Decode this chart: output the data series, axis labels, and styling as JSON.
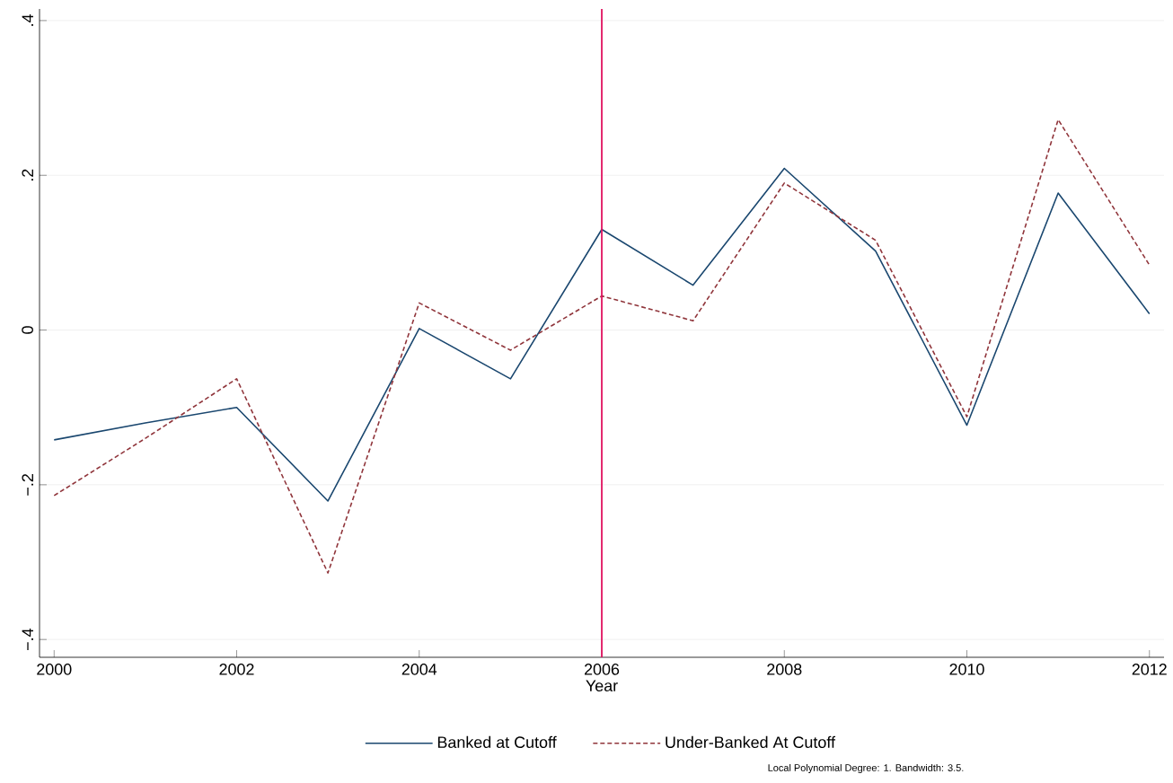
{
  "chart_data": {
    "type": "line",
    "xlabel": "Year",
    "x": [
      2000,
      2001,
      2002,
      2003,
      2004,
      2005,
      2006,
      2007,
      2008,
      2009,
      2010,
      2011,
      2012
    ],
    "series": [
      {
        "name": "Banked at Cutoff",
        "color": "#1a476f",
        "line_style": "solid",
        "values": [
          -0.142,
          -0.12,
          -0.1,
          -0.221,
          0.002,
          -0.063,
          0.13,
          0.058,
          0.209,
          0.102,
          -0.123,
          0.177,
          0.021
        ]
      },
      {
        "name": "Under-Banked At Cutoff",
        "color": "#90353b",
        "line_style": "dashed",
        "values": [
          -0.214,
          -0.14,
          -0.063,
          -0.314,
          0.035,
          -0.026,
          0.044,
          0.012,
          0.19,
          0.116,
          -0.112,
          0.272,
          0.084
        ]
      }
    ],
    "xlim": [
      1999.84,
      2012.16
    ],
    "ylim": [
      -0.423,
      0.415
    ],
    "xticks": [
      2000,
      2002,
      2004,
      2006,
      2008,
      2010,
      2012
    ],
    "yticks": [
      {
        "value": -0.4,
        "label": "−.4"
      },
      {
        "value": -0.2,
        "label": "−.2"
      },
      {
        "value": 0,
        "label": "0"
      },
      {
        "value": 0.2,
        "label": ".2"
      },
      {
        "value": 0.4,
        "label": ".4"
      }
    ],
    "grid": "y",
    "legend": "bottom",
    "marker": "none",
    "ref_lines": [
      {
        "axis": "x",
        "value": 2006,
        "color": "#e0115f"
      }
    ],
    "annotations": [
      "Local Polynomial Degree: 1. Bandwidth: 3.5."
    ]
  }
}
